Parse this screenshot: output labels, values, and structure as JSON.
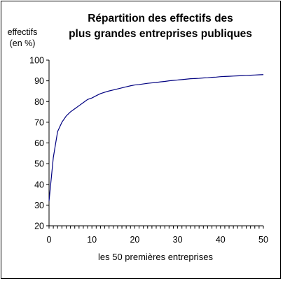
{
  "chart_data": {
    "type": "line",
    "title": [
      "Répartition des effectifs des",
      "plus grandes entreprises publiques"
    ],
    "ylabel": [
      "effectifs",
      "(en %)"
    ],
    "xlabel": "les 50 premières entreprises",
    "xlim": [
      0,
      50
    ],
    "ylim": [
      20,
      100
    ],
    "xticks": [
      0,
      10,
      20,
      30,
      40,
      50
    ],
    "yticks": [
      20,
      30,
      40,
      50,
      60,
      70,
      80,
      90,
      100
    ],
    "grid": false,
    "legend": "none",
    "line_color": "#000080",
    "series": [
      {
        "x": [
          0,
          1,
          2,
          3,
          4,
          5,
          6,
          7,
          8,
          9,
          10,
          11,
          12,
          13,
          14,
          15,
          16,
          17,
          18,
          19,
          20,
          21,
          22,
          23,
          24,
          25,
          26,
          27,
          28,
          29,
          30,
          31,
          32,
          33,
          34,
          35,
          36,
          37,
          38,
          39,
          40,
          41,
          42,
          43,
          44,
          45,
          46,
          47,
          48,
          49,
          50
        ],
        "values": [
          32,
          53,
          65.5,
          70,
          73,
          75,
          76.5,
          78,
          79.5,
          81,
          81.7,
          82.8,
          83.8,
          84.5,
          85.1,
          85.6,
          86.1,
          86.6,
          87.1,
          87.6,
          88,
          88.2,
          88.5,
          88.8,
          89,
          89.2,
          89.5,
          89.7,
          90,
          90.2,
          90.4,
          90.6,
          90.8,
          91,
          91.1,
          91.2,
          91.4,
          91.5,
          91.7,
          91.8,
          92,
          92.1,
          92.2,
          92.3,
          92.4,
          92.5,
          92.6,
          92.7,
          92.8,
          92.9,
          93
        ]
      }
    ]
  }
}
